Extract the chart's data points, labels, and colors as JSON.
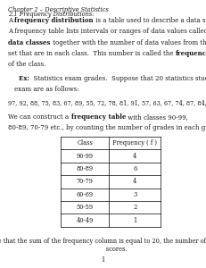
{
  "title_line": "Chapter 2 – Descriptive Statistics",
  "section": "2.1 Frequency Distributions:",
  "table_header": [
    "Class",
    "Frequency ( f )"
  ],
  "table_rows": [
    [
      "90-99",
      "4"
    ],
    [
      "80-89",
      "6"
    ],
    [
      "70-79",
      "4"
    ],
    [
      "60-69",
      "3"
    ],
    [
      "50-59",
      "2"
    ],
    [
      "40-49",
      "1"
    ]
  ],
  "page_num": "1",
  "background": "#ffffff",
  "text_color": "#1a1a1a"
}
